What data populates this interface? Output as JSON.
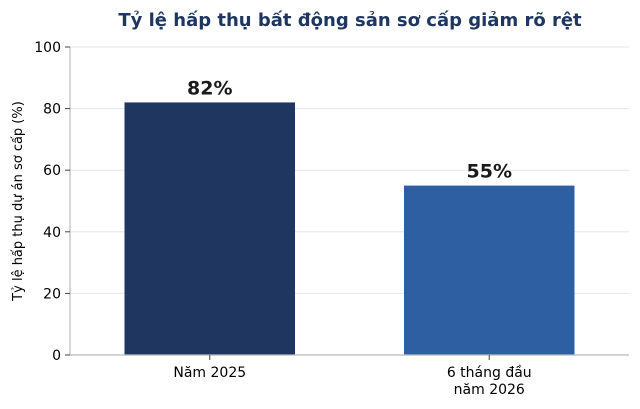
{
  "chart_data": {
    "type": "bar",
    "title": "Tỷ lệ hấp thụ bất động sản sơ cấp giảm rõ rệt",
    "ylabel": "Tỷ lệ hấp thụ dự án sơ cấp (%)",
    "xlabel": "",
    "categories": [
      [
        "Năm 2025"
      ],
      [
        "6 tháng đầu",
        "năm 2026"
      ]
    ],
    "values": [
      82,
      55
    ],
    "data_labels": [
      "82%",
      "55%"
    ],
    "ylim": [
      0,
      100
    ],
    "yticks": [
      0,
      20,
      40,
      60,
      80,
      100
    ],
    "ytick_labels": [
      "0",
      "20",
      "40",
      "60",
      "80",
      "100"
    ],
    "grid": "horizontal",
    "legend": "none",
    "colors": {
      "bars": [
        "#1f3660",
        "#2e5fa3"
      ],
      "title": "#1f3660",
      "grid": "#e6e6e6",
      "axis": "#bbbbbb"
    }
  }
}
